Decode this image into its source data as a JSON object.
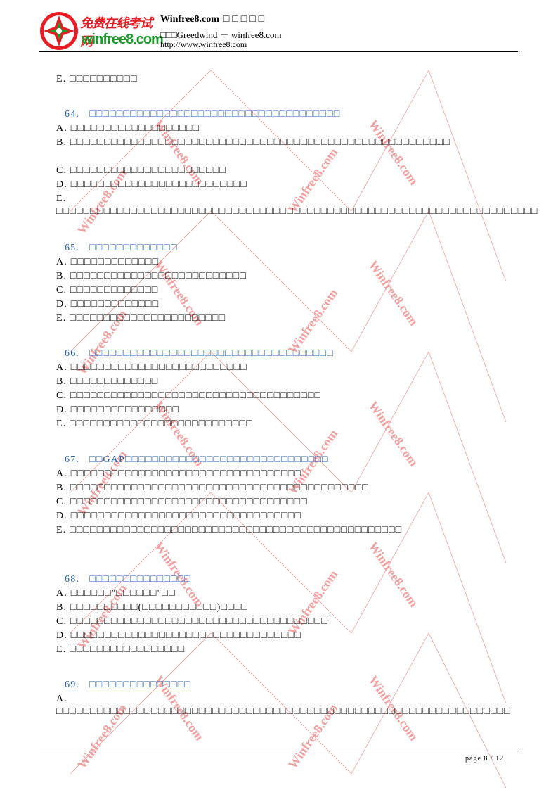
{
  "header": {
    "logo_cn": "免费在线考试网",
    "logo_en": "winfree8.com",
    "site_title": "Winfree8.com",
    "site_title_cn": "□□□□□",
    "subtitle": "□□□Greedwind － winfree8.com",
    "url": "http://www.winfree8.com"
  },
  "watermark_text": "Winfree8.com",
  "colors": {
    "question": "#1f5fb4",
    "watermark": "#f2a0a0",
    "logo_red": "#e51c23",
    "logo_green": "#1a9b2a"
  },
  "lines": [
    {
      "id": "e63",
      "text": "E.  □□□□□□□□□□"
    },
    {
      "id": "q64",
      "num": "64.",
      "text": "□□□□□□□□□□□□□□□□□□□□□□□□□□□□□□□□□□□□□"
    },
    {
      "id": "a64",
      "text": "A.  □□□□□□□□□□□□□□□□□□□"
    },
    {
      "id": "b64",
      "text": "B.  □□□□□□□□□□□□□□□□□□□□□□□□□□□□□□□□□□□□□□□□□□□□□□□□□□□□□□□□"
    },
    {
      "id": "c64",
      "text": "C.  □□□□□□□□□□□□□□□□□□□□□□□"
    },
    {
      "id": "d64",
      "text": "D.  □□□□□□□□□□□□□□□□□□□□□□□□□□"
    },
    {
      "id": "e64",
      "text": "E.  □□□□□□□□□□□□□□□□□□□□□□□□□□□□□□□□□□□□□□□□□□□□□□□□□□□□□□□□□□□□□□□□□□□□□□□"
    },
    {
      "id": "q65",
      "num": "65.",
      "text": "□□□□□□□□□□□□□"
    },
    {
      "id": "a65",
      "text": "A.  □□□□□□□□□□□□□"
    },
    {
      "id": "b65",
      "text": "B.  □□□□□□□□□□□□□□□□□□□□□□□□□□"
    },
    {
      "id": "c65",
      "text": "C.  □□□□□□□□□□□□□"
    },
    {
      "id": "d65",
      "text": "D.  □□□□□□□□□□□□□"
    },
    {
      "id": "e65",
      "text": "E.  □□□□□□□□□□□□□□□□□□□□□□□"
    },
    {
      "id": "q66",
      "num": "66.",
      "text": "□□□□□□□□□□□□□□□□□□□□□□□□□□□□□□□□□□□□"
    },
    {
      "id": "a66",
      "text": "A.  □□□□□□□□□□□□□□□□□□□□□□□□□□"
    },
    {
      "id": "b66",
      "text": "B.  □□□□□□□□□□□□□"
    },
    {
      "id": "c66",
      "text": "C.  □□□□□□□□□□□□□□□□□□□□□□□□□□□□□□□□□□□□□"
    },
    {
      "id": "d66",
      "text": "D.  □□□□□□□□□□□□□□□□"
    },
    {
      "id": "e66",
      "text": "E.  □□□□□□□□□□□□□□□□□□□□□□□□□□□"
    },
    {
      "id": "q67",
      "num": "67.",
      "text": "□□GAP□□□□□□□□□□□□□□□□□□□□□□□□□□□□□□"
    },
    {
      "id": "a67",
      "text": "A.  □□□□□□□□□□□□□□□□□□□□□□□□□□□□□□□□□□"
    },
    {
      "id": "b67",
      "text": "B.  □□□□□□□□□□□□□□□□□□□□□□□□□□□□□□□□□□□□□□□□□□□□"
    },
    {
      "id": "c67",
      "text": "C.  □□□□□□□□□□□□□□□□□□□□□□□□□□□□□□□□□□□"
    },
    {
      "id": "d67",
      "text": "D.  □□□□□□□□□□□□□□□□□□□□□□□□□□□□□□□□□□"
    },
    {
      "id": "e67",
      "text": "E.  □□□□□□□□□□□□□□□□□□□□□□□□□□□□□□□□□□□□□□□□□□□□□□□□□"
    },
    {
      "id": "q68",
      "num": "68.",
      "text": "□□□□□□□□□□□□□□□"
    },
    {
      "id": "a68",
      "text": "A.  □□□□□□\"□□□□□□\"□□"
    },
    {
      "id": "b68",
      "text": "B.  □□□□□□□□□□(□□□□□□□□□□□)□□□□"
    },
    {
      "id": "c68",
      "text": "C.  □□□□□□□□□□□□□□□□□□□□□□□□□□□□□□□□□□□□□□"
    },
    {
      "id": "d68",
      "text": "D.  □□□□□□□□□□□□□□□□□□□□□□□□□□□□□□□□□□"
    },
    {
      "id": "e68",
      "text": "E.  □□□□□□□□□□□□□□□□□"
    },
    {
      "id": "q69",
      "num": "69.",
      "text": "□□□□□□□□□□□□□□□"
    },
    {
      "id": "a69",
      "text": "A.  □□□□□□□□□□□□□□□□□□□□□□□□□□□□□□□□□□□□□□□□□□□□□□□□□□□□□□□□□□□□□□□□□□□"
    }
  ],
  "footer": {
    "page_label": "page  8 /   12"
  }
}
